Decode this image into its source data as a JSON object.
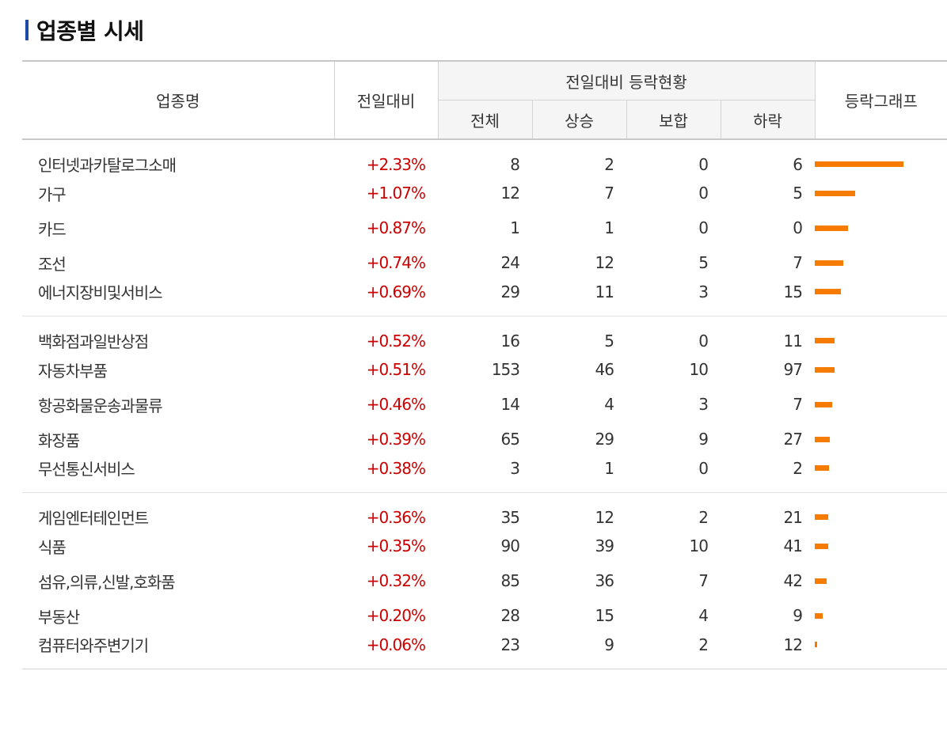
{
  "title": "업종별 시세",
  "headers": {
    "name": "업종명",
    "change": "전일대비",
    "group": "전일대비 등락현황",
    "total": "전체",
    "up": "상승",
    "flat": "보합",
    "down": "하락",
    "graph": "등락그래프"
  },
  "colors": {
    "accent_bar": "#1f4aa8",
    "up_text": "#cc0000",
    "graph_bar": "#f57c00"
  },
  "groups": [
    {
      "rows": [
        {
          "name": "인터넷과카탈로그소매",
          "change": "+2.33%",
          "change_value": 2.33,
          "total": "8",
          "up": "2",
          "flat": "0",
          "down": "6"
        },
        {
          "name": "가구",
          "change": "+1.07%",
          "change_value": 1.07,
          "total": "12",
          "up": "7",
          "flat": "0",
          "down": "5"
        },
        {
          "name": "카드",
          "change": "+0.87%",
          "change_value": 0.87,
          "total": "1",
          "up": "1",
          "flat": "0",
          "down": "0"
        },
        {
          "name": "조선",
          "change": "+0.74%",
          "change_value": 0.74,
          "total": "24",
          "up": "12",
          "flat": "5",
          "down": "7"
        },
        {
          "name": "에너지장비및서비스",
          "change": "+0.69%",
          "change_value": 0.69,
          "total": "29",
          "up": "11",
          "flat": "3",
          "down": "15"
        }
      ]
    },
    {
      "rows": [
        {
          "name": "백화점과일반상점",
          "change": "+0.52%",
          "change_value": 0.52,
          "total": "16",
          "up": "5",
          "flat": "0",
          "down": "11"
        },
        {
          "name": "자동차부품",
          "change": "+0.51%",
          "change_value": 0.51,
          "total": "153",
          "up": "46",
          "flat": "10",
          "down": "97"
        },
        {
          "name": "항공화물운송과물류",
          "change": "+0.46%",
          "change_value": 0.46,
          "total": "14",
          "up": "4",
          "flat": "3",
          "down": "7"
        },
        {
          "name": "화장품",
          "change": "+0.39%",
          "change_value": 0.39,
          "total": "65",
          "up": "29",
          "flat": "9",
          "down": "27"
        },
        {
          "name": "무선통신서비스",
          "change": "+0.38%",
          "change_value": 0.38,
          "total": "3",
          "up": "1",
          "flat": "0",
          "down": "2"
        }
      ]
    },
    {
      "rows": [
        {
          "name": "게임엔터테인먼트",
          "change": "+0.36%",
          "change_value": 0.36,
          "total": "35",
          "up": "12",
          "flat": "2",
          "down": "21"
        },
        {
          "name": "식품",
          "change": "+0.35%",
          "change_value": 0.35,
          "total": "90",
          "up": "39",
          "flat": "10",
          "down": "41"
        },
        {
          "name": "섬유,의류,신발,호화품",
          "change": "+0.32%",
          "change_value": 0.32,
          "total": "85",
          "up": "36",
          "flat": "7",
          "down": "42"
        },
        {
          "name": "부동산",
          "change": "+0.20%",
          "change_value": 0.2,
          "total": "28",
          "up": "15",
          "flat": "4",
          "down": "9"
        },
        {
          "name": "컴퓨터와주변기기",
          "change": "+0.06%",
          "change_value": 0.06,
          "total": "23",
          "up": "9",
          "flat": "2",
          "down": "12"
        }
      ]
    }
  ]
}
